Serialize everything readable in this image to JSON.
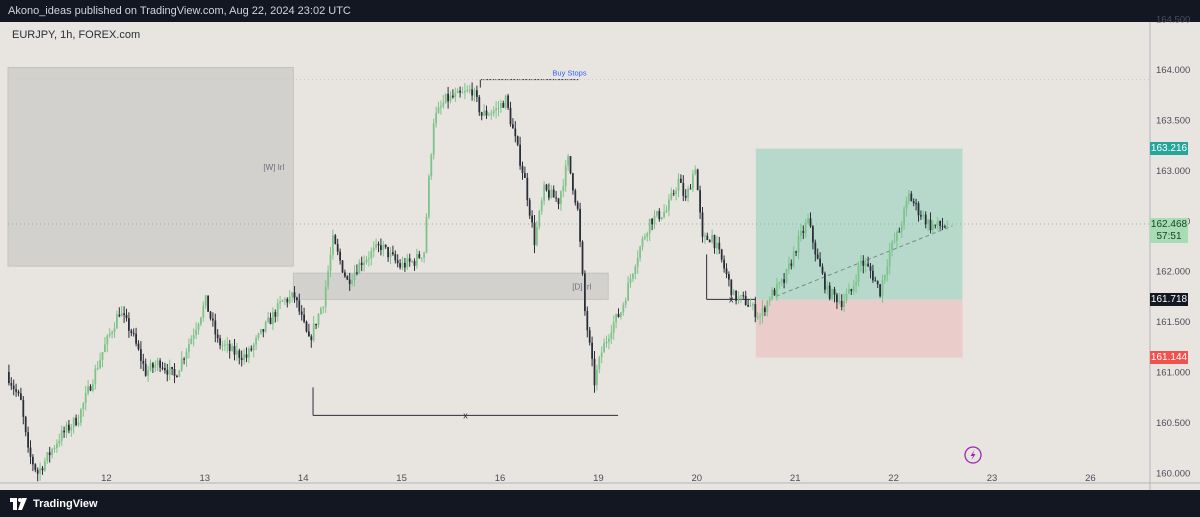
{
  "header": {
    "published_text": "Akono_ideas published on TradingView.com, Aug 22, 2024 23:02 UTC"
  },
  "symbol": {
    "label": "EURJPY, 1h, FOREX.com"
  },
  "footer": {
    "brand": "TradingView"
  },
  "colors": {
    "background": "#e8e4e0",
    "bull": "#7ec38a",
    "bear": "#2a2e39",
    "zone_gray": "#d3d1ce",
    "profit_zone": "#a6d5c4",
    "loss_zone": "#eacac8",
    "target_badge": "#26a69a",
    "stop_badge": "#ef5350",
    "entry_badge": "#131722"
  },
  "icons": {
    "lightning": "lightning-icon",
    "logo": "tradingview-logo-icon"
  },
  "chart_data": {
    "type": "candlestick",
    "title": "",
    "ylim": [
      159.85,
      164.6
    ],
    "y_ticks": [
      "164.500",
      "164.000",
      "163.500",
      "163.000",
      "162.500",
      "162.000",
      "161.500",
      "161.000",
      "160.500",
      "160.000"
    ],
    "x_ticks": [
      "12",
      "13",
      "14",
      "15",
      "16",
      "19",
      "20",
      "21",
      "22",
      "23",
      "26"
    ],
    "price_badges": {
      "target": "163.216",
      "current": "162.468",
      "countdown": "57:51",
      "entry": "161.718",
      "stop": "161.144"
    },
    "zone_labels": {
      "weekly": "[W] Irl",
      "daily": "[D] Irl",
      "buy_stops": "Buy Stops",
      "x_label_1": "x",
      "x_label_2": "x"
    },
    "zones": [
      {
        "name": "weekly",
        "x_start": "11",
        "x_end": "13.9",
        "y_low": 162.05,
        "y_high": 164.02
      },
      {
        "name": "daily",
        "x_start": "13.9",
        "x_end": "19.1",
        "y_low": 161.72,
        "y_high": 161.98
      }
    ],
    "position": {
      "entry": 161.718,
      "target": 163.216,
      "stop": 161.144,
      "x_start": "20.6",
      "x_end": "22.7"
    },
    "levels": [
      {
        "name": "buy_stops",
        "price": 163.9,
        "x_start": "15.8",
        "x_end": "16.8"
      },
      {
        "name": "x_low_1",
        "price": 160.57,
        "x_start": "14.1",
        "x_end": "19.2"
      },
      {
        "name": "x_low_2",
        "price": 161.72,
        "x_start": "20.1",
        "x_end": "20.6"
      }
    ],
    "anchors": [
      {
        "t": 0,
        "p": 161.0
      },
      {
        "t": 6,
        "p": 160.7
      },
      {
        "t": 9,
        "p": 160.2
      },
      {
        "t": 13,
        "p": 160.0
      },
      {
        "t": 22,
        "p": 160.35
      },
      {
        "t": 30,
        "p": 160.55
      },
      {
        "t": 40,
        "p": 161.2
      },
      {
        "t": 47,
        "p": 161.6
      },
      {
        "t": 52,
        "p": 161.4
      },
      {
        "t": 58,
        "p": 161.0
      },
      {
        "t": 64,
        "p": 161.1
      },
      {
        "t": 70,
        "p": 160.95
      },
      {
        "t": 78,
        "p": 161.4
      },
      {
        "t": 83,
        "p": 161.7
      },
      {
        "t": 88,
        "p": 161.3
      },
      {
        "t": 94,
        "p": 161.2
      },
      {
        "t": 100,
        "p": 161.15
      },
      {
        "t": 108,
        "p": 161.45
      },
      {
        "t": 115,
        "p": 161.7
      },
      {
        "t": 120,
        "p": 161.75
      },
      {
        "t": 126,
        "p": 161.3
      },
      {
        "t": 132,
        "p": 161.7
      },
      {
        "t": 136,
        "p": 162.3
      },
      {
        "t": 142,
        "p": 161.9
      },
      {
        "t": 148,
        "p": 162.1
      },
      {
        "t": 156,
        "p": 162.25
      },
      {
        "t": 164,
        "p": 162.05
      },
      {
        "t": 170,
        "p": 162.1
      },
      {
        "t": 174,
        "p": 162.2
      },
      {
        "t": 176,
        "p": 162.9
      },
      {
        "t": 178,
        "p": 163.5
      },
      {
        "t": 183,
        "p": 163.7
      },
      {
        "t": 190,
        "p": 163.75
      },
      {
        "t": 194,
        "p": 163.8
      },
      {
        "t": 198,
        "p": 163.55
      },
      {
        "t": 204,
        "p": 163.6
      },
      {
        "t": 208,
        "p": 163.7
      },
      {
        "t": 212,
        "p": 163.3
      },
      {
        "t": 216,
        "p": 162.9
      },
      {
        "t": 220,
        "p": 162.3
      },
      {
        "t": 224,
        "p": 162.8
      },
      {
        "t": 230,
        "p": 162.7
      },
      {
        "t": 234,
        "p": 163.1
      },
      {
        "t": 238,
        "p": 162.6
      },
      {
        "t": 241,
        "p": 161.6
      },
      {
        "t": 245,
        "p": 160.9
      },
      {
        "t": 248,
        "p": 161.2
      },
      {
        "t": 252,
        "p": 161.45
      },
      {
        "t": 256,
        "p": 161.6
      },
      {
        "t": 262,
        "p": 162.1
      },
      {
        "t": 268,
        "p": 162.5
      },
      {
        "t": 275,
        "p": 162.6
      },
      {
        "t": 280,
        "p": 162.9
      },
      {
        "t": 283,
        "p": 162.7
      },
      {
        "t": 287,
        "p": 163.05
      },
      {
        "t": 290,
        "p": 162.3
      },
      {
        "t": 294,
        "p": 162.35
      },
      {
        "t": 298,
        "p": 162.1
      },
      {
        "t": 303,
        "p": 161.75
      },
      {
        "t": 308,
        "p": 161.7
      },
      {
        "t": 314,
        "p": 161.55
      },
      {
        "t": 318,
        "p": 161.75
      },
      {
        "t": 324,
        "p": 161.9
      },
      {
        "t": 330,
        "p": 162.3
      },
      {
        "t": 334,
        "p": 162.5
      },
      {
        "t": 338,
        "p": 162.1
      },
      {
        "t": 342,
        "p": 161.8
      },
      {
        "t": 348,
        "p": 161.7
      },
      {
        "t": 352,
        "p": 161.8
      },
      {
        "t": 356,
        "p": 162.1
      },
      {
        "t": 360,
        "p": 162.0
      },
      {
        "t": 364,
        "p": 161.8
      },
      {
        "t": 368,
        "p": 162.2
      },
      {
        "t": 372,
        "p": 162.4
      },
      {
        "t": 376,
        "p": 162.75
      },
      {
        "t": 380,
        "p": 162.6
      },
      {
        "t": 385,
        "p": 162.45
      },
      {
        "t": 392,
        "p": 162.45
      }
    ],
    "x_tick_index": [
      41,
      82,
      123,
      164,
      205,
      246,
      287,
      328,
      369,
      410,
      451
    ]
  }
}
